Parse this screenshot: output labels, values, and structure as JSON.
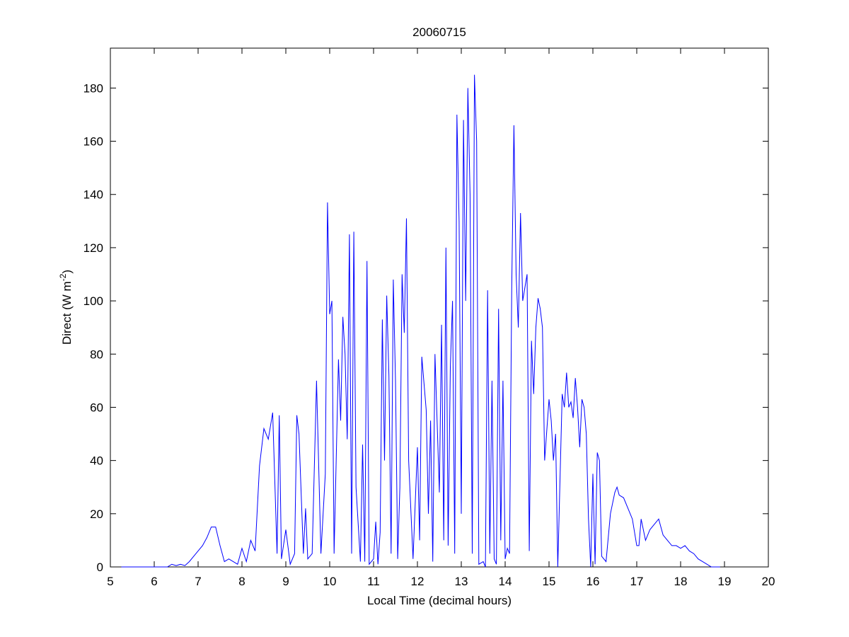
{
  "chart_data": {
    "type": "line",
    "title": "20060715",
    "xlabel": "Local Time (decimal hours)",
    "ylabel": [
      "Direct (W m",
      "-2",
      ")"
    ],
    "x": [
      5.25,
      6.3,
      6.4,
      6.5,
      6.6,
      6.7,
      6.8,
      6.9,
      7.0,
      7.1,
      7.2,
      7.3,
      7.4,
      7.5,
      7.6,
      7.7,
      7.8,
      7.9,
      8.0,
      8.1,
      8.2,
      8.3,
      8.4,
      8.5,
      8.6,
      8.7,
      8.8,
      8.85,
      8.9,
      9.0,
      9.1,
      9.2,
      9.25,
      9.3,
      9.4,
      9.45,
      9.5,
      9.6,
      9.7,
      9.8,
      9.9,
      9.95,
      10.0,
      10.05,
      10.1,
      10.2,
      10.25,
      10.3,
      10.35,
      10.4,
      10.45,
      10.5,
      10.55,
      10.6,
      10.7,
      10.75,
      10.8,
      10.85,
      10.9,
      11.0,
      11.05,
      11.1,
      11.15,
      11.2,
      11.25,
      11.3,
      11.35,
      11.4,
      11.45,
      11.5,
      11.55,
      11.6,
      11.65,
      11.7,
      11.75,
      11.8,
      11.9,
      12.0,
      12.05,
      12.1,
      12.2,
      12.25,
      12.3,
      12.35,
      12.4,
      12.5,
      12.55,
      12.6,
      12.65,
      12.7,
      12.75,
      12.8,
      12.85,
      12.9,
      12.95,
      13.0,
      13.05,
      13.1,
      13.15,
      13.2,
      13.25,
      13.3,
      13.35,
      13.4,
      13.5,
      13.55,
      13.6,
      13.65,
      13.7,
      13.75,
      13.8,
      13.85,
      13.9,
      13.95,
      14.0,
      14.05,
      14.1,
      14.15,
      14.2,
      14.25,
      14.3,
      14.35,
      14.4,
      14.5,
      14.55,
      14.6,
      14.65,
      14.7,
      14.75,
      14.8,
      14.85,
      14.9,
      15.0,
      15.05,
      15.1,
      15.15,
      15.2,
      15.3,
      15.35,
      15.4,
      15.45,
      15.5,
      15.55,
      15.6,
      15.65,
      15.7,
      15.75,
      15.8,
      15.85,
      15.9,
      15.95,
      16.0,
      16.05,
      16.1,
      16.15,
      16.2,
      16.3,
      16.4,
      16.5,
      16.55,
      16.6,
      16.7,
      16.8,
      16.9,
      17.0,
      17.05,
      17.1,
      17.2,
      17.3,
      17.4,
      17.5,
      17.6,
      17.7,
      17.8,
      17.9,
      18.0,
      18.1,
      18.2,
      18.3,
      18.4,
      18.5,
      18.6,
      18.7,
      18.9
    ],
    "series": [
      {
        "color": "#0000ff",
        "values": [
          0,
          0,
          1,
          0.5,
          1,
          0.5,
          2,
          4,
          6,
          8,
          11,
          15,
          15,
          8,
          2,
          3,
          2,
          1,
          7,
          2,
          10,
          6,
          38,
          52,
          48,
          58,
          5,
          57,
          3,
          14,
          1,
          5,
          57,
          50,
          5,
          22,
          3,
          5,
          70,
          5,
          35,
          137,
          95,
          100,
          5,
          78,
          55,
          94,
          80,
          48,
          125,
          5,
          126,
          30,
          2,
          46,
          2,
          115,
          1,
          3,
          17,
          1,
          13,
          93,
          40,
          102,
          72,
          5,
          108,
          70,
          3,
          30,
          110,
          88,
          131,
          40,
          3,
          45,
          10,
          79,
          59,
          20,
          55,
          2,
          80,
          28,
          91,
          10,
          120,
          8,
          75,
          100,
          5,
          170,
          130,
          20,
          168,
          100,
          180,
          140,
          5,
          185,
          160,
          1,
          2,
          0,
          104,
          5,
          70,
          3,
          1,
          97,
          10,
          70,
          3,
          7,
          5,
          105,
          166,
          110,
          90,
          133,
          100,
          110,
          6,
          85,
          65,
          90,
          101,
          97,
          90,
          40,
          63,
          55,
          40,
          50,
          0,
          65,
          60,
          73,
          60,
          62,
          56,
          71,
          60,
          45,
          63,
          60,
          50,
          18,
          0,
          35,
          1,
          43,
          40,
          4,
          2,
          20,
          28,
          30,
          27,
          26,
          22,
          18,
          8,
          8,
          18,
          10,
          14,
          16,
          18,
          12,
          10,
          8,
          8,
          7,
          8,
          6,
          5,
          3,
          2,
          1,
          0,
          0
        ]
      }
    ],
    "xlim": [
      5,
      20
    ],
    "ylim": [
      0,
      195
    ],
    "xticks": [
      5,
      6,
      7,
      8,
      9,
      10,
      11,
      12,
      13,
      14,
      15,
      16,
      17,
      18,
      19,
      20
    ],
    "yticks": [
      0,
      20,
      40,
      60,
      80,
      100,
      120,
      140,
      160,
      180
    ]
  }
}
